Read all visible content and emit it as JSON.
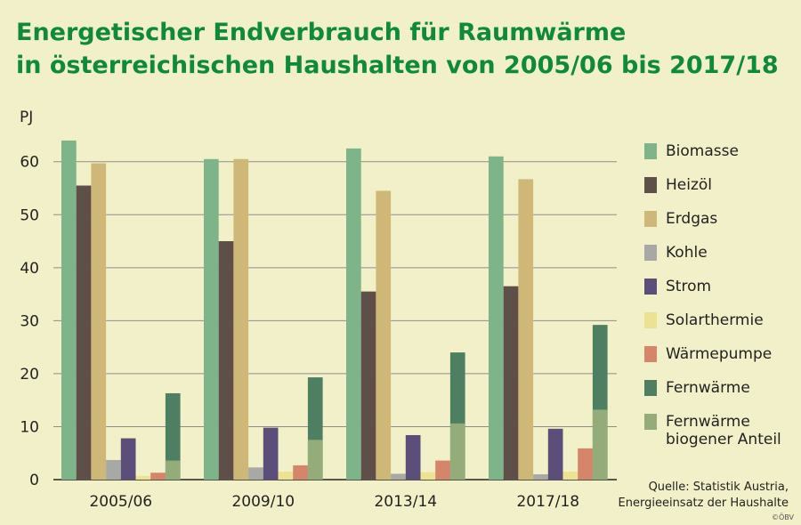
{
  "title_line1": "Energetischer Endverbrauch für Raumwärme",
  "title_line2": "in österreichischen Haushalten von 2005/06 bis 2017/18",
  "source_line1": "Quelle: Statistik Austria,",
  "source_line2": "Energieeinsatz der Haushalte",
  "copyright": "©ÖBV",
  "chart_data": {
    "type": "bar",
    "ylabel": "PJ",
    "ylim": [
      0,
      66
    ],
    "yticks": [
      0,
      10,
      20,
      30,
      40,
      50,
      60
    ],
    "grid": true,
    "categories": [
      "2005/06",
      "2009/10",
      "2013/14",
      "2017/18"
    ],
    "series": [
      {
        "name": "Biomasse",
        "color": "#7fb48a",
        "values": [
          64,
          60.5,
          62.5,
          61
        ]
      },
      {
        "name": "Heizöl",
        "color": "#5e5049",
        "values": [
          55.5,
          45,
          35.5,
          36.5
        ]
      },
      {
        "name": "Erdgas",
        "color": "#cfb877",
        "values": [
          59.7,
          60.5,
          54.5,
          56.7
        ]
      },
      {
        "name": "Kohle",
        "color": "#a8a9a6",
        "values": [
          3.7,
          2.3,
          1.1,
          1.0
        ]
      },
      {
        "name": "Strom",
        "color": "#5b4f7a",
        "values": [
          7.8,
          9.8,
          8.4,
          9.6
        ]
      },
      {
        "name": "Solarthermie",
        "color": "#ede291",
        "values": [
          0.7,
          1.5,
          1.4,
          1.5
        ]
      },
      {
        "name": "Wärmepumpe",
        "color": "#d5866a",
        "values": [
          1.3,
          2.7,
          3.6,
          5.9
        ]
      },
      {
        "name": "Fernwärme",
        "color": "#4f7f63",
        "values": [
          16.3,
          19.3,
          24.0,
          29.2
        ]
      },
      {
        "name": "Fernwärme\nbiogener Anteil",
        "color": "#94ac79",
        "values": [
          3.6,
          7.5,
          10.6,
          13.2
        ]
      }
    ]
  }
}
